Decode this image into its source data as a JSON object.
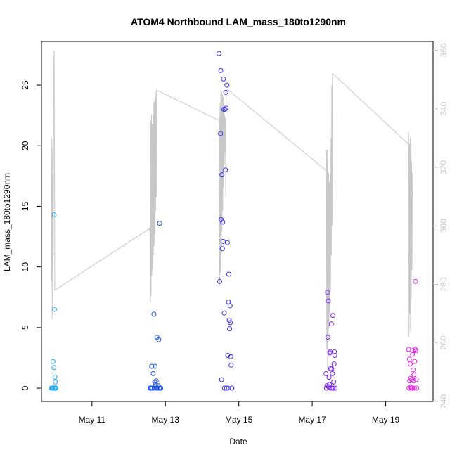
{
  "chart_data": {
    "type": "scatter",
    "title": "ATOM4 Northbound LAM_mass_180to1290nm",
    "xlabel": "Date",
    "ylabel": "LAM_mass_180to1290nm",
    "x_ticks": [
      "May 11",
      "May 13",
      "May 15",
      "May 17",
      "May 19"
    ],
    "xlim": [
      "2016-05-09T15:00",
      "2016-05-20T07:00"
    ],
    "ylim": [
      -1.1,
      28.6
    ],
    "y_ticks": [
      0,
      5,
      10,
      15,
      20,
      25
    ],
    "y2lim": [
      240,
      363
    ],
    "y2_ticks": [
      240,
      260,
      280,
      300,
      320,
      340,
      360
    ],
    "grid": false,
    "legend": "none",
    "colors": {
      "series_line": "#c8c8c8",
      "points": [
        "#1aa8f0",
        "#1f4fe8",
        "#3a2ee6",
        "#7a22e8",
        "#e21ee0"
      ]
    },
    "series": [
      {
        "axis": "left",
        "type": "scatter",
        "groups": [
          {
            "color": "#1aa8f0",
            "points": [
              [
                "2016-05-09T21:30",
                0
              ],
              [
                "2016-05-09T22:00",
                0
              ],
              [
                "2016-05-09T22:15",
                0
              ],
              [
                "2016-05-09T22:30",
                2.2
              ],
              [
                "2016-05-09T23:00",
                0
              ],
              [
                "2016-05-09T23:10",
                1.7
              ],
              [
                "2016-05-09T23:20",
                14.3
              ],
              [
                "2016-05-09T23:30",
                6.5
              ],
              [
                "2016-05-09T23:40",
                0
              ],
              [
                "2016-05-09T23:50",
                0.9
              ],
              [
                "2016-05-10T00:00",
                0.5
              ],
              [
                "2016-05-10T00:05",
                0
              ],
              [
                "2016-05-10T00:10",
                0
              ],
              [
                "2016-05-10T00:20",
                0
              ]
            ]
          },
          {
            "color": "#1f4fe8",
            "points": [
              [
                "2016-05-12T14:00",
                0
              ],
              [
                "2016-05-12T14:20",
                0
              ],
              [
                "2016-05-12T14:40",
                0
              ],
              [
                "2016-05-12T15:00",
                1.8
              ],
              [
                "2016-05-12T15:15",
                0
              ],
              [
                "2016-05-12T15:30",
                0
              ],
              [
                "2016-05-12T16:00",
                1.2
              ],
              [
                "2016-05-12T16:30",
                6.1
              ],
              [
                "2016-05-12T16:45",
                0
              ],
              [
                "2016-05-12T17:00",
                0.5
              ],
              [
                "2016-05-12T17:15",
                1.8
              ],
              [
                "2016-05-12T17:30",
                0.3
              ],
              [
                "2016-05-12T18:00",
                0.6
              ],
              [
                "2016-05-12T18:15",
                0
              ],
              [
                "2016-05-12T18:30",
                4.2
              ],
              [
                "2016-05-12T19:00",
                0
              ],
              [
                "2016-05-12T19:20",
                0.2
              ],
              [
                "2016-05-12T19:40",
                4.0
              ],
              [
                "2016-05-12T20:00",
                0
              ],
              [
                "2016-05-12T20:15",
                13.6
              ],
              [
                "2016-05-12T20:30",
                0
              ],
              [
                "2016-05-12T21:00",
                0
              ]
            ]
          },
          {
            "color": "#3a2ee6",
            "points": [
              [
                "2016-05-14T11:00",
                27.6
              ],
              [
                "2016-05-14T11:30",
                8.8
              ],
              [
                "2016-05-14T12:00",
                21.0
              ],
              [
                "2016-05-14T12:15",
                26.2
              ],
              [
                "2016-05-14T12:30",
                13.9
              ],
              [
                "2016-05-14T12:45",
                0.7
              ],
              [
                "2016-05-14T13:00",
                17.6
              ],
              [
                "2016-05-14T13:15",
                11.5
              ],
              [
                "2016-05-14T13:30",
                13.7
              ],
              [
                "2016-05-14T13:45",
                12.1
              ],
              [
                "2016-05-14T14:00",
                25.5
              ],
              [
                "2016-05-14T14:15",
                23.0
              ],
              [
                "2016-05-14T14:30",
                6.2
              ],
              [
                "2016-05-14T14:40",
                0
              ],
              [
                "2016-05-14T15:00",
                23.0
              ],
              [
                "2016-05-14T15:15",
                18.0
              ],
              [
                "2016-05-14T15:30",
                24.4
              ],
              [
                "2016-05-14T15:45",
                23.1
              ],
              [
                "2016-05-14T16:00",
                0
              ],
              [
                "2016-05-14T16:15",
                25.0
              ],
              [
                "2016-05-14T16:30",
                12.0
              ],
              [
                "2016-05-14T16:45",
                2.7
              ],
              [
                "2016-05-14T17:00",
                0
              ],
              [
                "2016-05-14T17:15",
                7.1
              ],
              [
                "2016-05-14T17:30",
                9.4
              ],
              [
                "2016-05-14T17:45",
                5.6
              ],
              [
                "2016-05-14T18:00",
                4.9
              ],
              [
                "2016-05-14T18:15",
                6.8
              ],
              [
                "2016-05-14T18:30",
                5.4
              ],
              [
                "2016-05-14T18:45",
                2.6
              ],
              [
                "2016-05-14T19:00",
                1.9
              ],
              [
                "2016-05-14T19:30",
                0
              ]
            ]
          },
          {
            "color": "#7a22e8",
            "points": [
              [
                "2016-05-17T09:00",
                1.2
              ],
              [
                "2016-05-17T09:20",
                0
              ],
              [
                "2016-05-17T09:40",
                0.2
              ],
              [
                "2016-05-17T10:00",
                7.9
              ],
              [
                "2016-05-17T10:15",
                4.2
              ],
              [
                "2016-05-17T10:30",
                7.2
              ],
              [
                "2016-05-17T10:45",
                0.1
              ],
              [
                "2016-05-17T11:00",
                0.9
              ],
              [
                "2016-05-17T11:15",
                0.3
              ],
              [
                "2016-05-17T11:30",
                2.9
              ],
              [
                "2016-05-17T11:45",
                3.0
              ],
              [
                "2016-05-17T12:00",
                1.6
              ],
              [
                "2016-05-17T12:15",
                0
              ],
              [
                "2016-05-17T12:30",
                5.3
              ],
              [
                "2016-05-17T12:45",
                1.6
              ],
              [
                "2016-05-17T13:00",
                0
              ],
              [
                "2016-05-17T13:15",
                1.2
              ],
              [
                "2016-05-17T13:30",
                6.0
              ],
              [
                "2016-05-17T13:45",
                0
              ],
              [
                "2016-05-17T14:00",
                0.5
              ],
              [
                "2016-05-17T14:15",
                2.0
              ],
              [
                "2016-05-17T14:30",
                3.0
              ],
              [
                "2016-05-17T14:45",
                2.7
              ],
              [
                "2016-05-17T15:00",
                0
              ]
            ]
          },
          {
            "color": "#e21ee0",
            "points": [
              [
                "2016-05-19T15:00",
                3.2
              ],
              [
                "2016-05-19T15:15",
                0
              ],
              [
                "2016-05-19T15:30",
                2.4
              ],
              [
                "2016-05-19T15:45",
                0.6
              ],
              [
                "2016-05-19T16:00",
                2.0
              ],
              [
                "2016-05-19T16:15",
                0.8
              ],
              [
                "2016-05-19T16:30",
                0.1
              ],
              [
                "2016-05-19T16:45",
                0
              ],
              [
                "2016-05-19T17:00",
                0.7
              ],
              [
                "2016-05-19T17:15",
                0
              ],
              [
                "2016-05-19T17:30",
                2.8
              ],
              [
                "2016-05-19T17:45",
                3.1
              ],
              [
                "2016-05-19T18:00",
                1.5
              ],
              [
                "2016-05-19T18:15",
                0.6
              ],
              [
                "2016-05-19T18:30",
                1.1
              ],
              [
                "2016-05-19T18:45",
                0
              ],
              [
                "2016-05-19T19:00",
                2.2
              ],
              [
                "2016-05-19T19:15",
                3.2
              ],
              [
                "2016-05-19T19:30",
                8.8
              ],
              [
                "2016-05-19T19:45",
                3.1
              ],
              [
                "2016-05-19T20:00",
                0.7
              ],
              [
                "2016-05-19T20:15",
                0
              ]
            ]
          }
        ]
      },
      {
        "axis": "right",
        "type": "line",
        "points": [
          [
            "2016-05-09T21:30",
            281
          ],
          [
            "2016-05-09T21:45",
            330
          ],
          [
            "2016-05-09T22:00",
            268
          ],
          [
            "2016-05-09T22:20",
            327
          ],
          [
            "2016-05-09T22:40",
            290
          ],
          [
            "2016-05-09T23:00",
            355
          ],
          [
            "2016-05-09T23:20",
            360
          ],
          [
            "2016-05-09T23:40",
            278
          ],
          [
            "2016-05-12T13:30",
            299
          ],
          [
            "2016-05-12T13:45",
            298
          ],
          [
            "2016-05-12T14:00",
            300
          ],
          [
            "2016-05-12T14:10",
            274
          ],
          [
            "2016-05-12T14:25",
            336
          ],
          [
            "2016-05-12T14:40",
            276
          ],
          [
            "2016-05-12T14:55",
            338
          ],
          [
            "2016-05-12T15:10",
            283
          ],
          [
            "2016-05-12T15:25",
            335
          ],
          [
            "2016-05-12T15:40",
            285
          ],
          [
            "2016-05-12T15:55",
            338
          ],
          [
            "2016-05-12T16:10",
            290
          ],
          [
            "2016-05-12T16:25",
            342
          ],
          [
            "2016-05-12T16:40",
            293
          ],
          [
            "2016-05-12T16:55",
            343
          ],
          [
            "2016-05-12T17:10",
            297
          ],
          [
            "2016-05-12T17:25",
            344
          ],
          [
            "2016-05-12T17:40",
            305
          ],
          [
            "2016-05-12T17:55",
            346
          ],
          [
            "2016-05-12T18:10",
            310
          ],
          [
            "2016-05-12T18:25",
            347
          ],
          [
            "2016-05-12T18:40",
            346
          ],
          [
            "2016-05-12T20:00",
            346
          ],
          [
            "2016-05-14T11:00",
            336
          ],
          [
            "2016-05-14T11:15",
            337
          ],
          [
            "2016-05-14T11:30",
            280
          ],
          [
            "2016-05-14T11:45",
            342
          ],
          [
            "2016-05-14T12:00",
            284
          ],
          [
            "2016-05-14T12:15",
            345
          ],
          [
            "2016-05-14T12:30",
            290
          ],
          [
            "2016-05-14T12:45",
            346
          ],
          [
            "2016-05-14T13:00",
            298
          ],
          [
            "2016-05-14T13:15",
            345
          ],
          [
            "2016-05-14T13:30",
            305
          ],
          [
            "2016-05-14T13:45",
            344
          ],
          [
            "2016-05-14T14:00",
            313
          ],
          [
            "2016-05-14T14:15",
            342
          ],
          [
            "2016-05-14T14:30",
            321
          ],
          [
            "2016-05-14T14:45",
            338
          ],
          [
            "2016-05-14T15:00",
            325
          ],
          [
            "2016-05-14T15:15",
            337
          ],
          [
            "2016-05-14T15:30",
            310
          ],
          [
            "2016-05-14T15:45",
            347
          ],
          [
            "2016-05-17T09:00",
            319
          ],
          [
            "2016-05-17T09:15",
            326
          ],
          [
            "2016-05-17T09:30",
            258
          ],
          [
            "2016-05-17T09:45",
            326
          ],
          [
            "2016-05-17T10:00",
            251
          ],
          [
            "2016-05-17T10:15",
            323
          ],
          [
            "2016-05-17T10:30",
            260
          ],
          [
            "2016-05-17T10:45",
            318
          ],
          [
            "2016-05-17T11:00",
            265
          ],
          [
            "2016-05-17T11:15",
            315
          ],
          [
            "2016-05-17T11:30",
            270
          ],
          [
            "2016-05-17T11:45",
            318
          ],
          [
            "2016-05-17T12:00",
            278
          ],
          [
            "2016-05-17T12:15",
            330
          ],
          [
            "2016-05-17T12:30",
            290
          ],
          [
            "2016-05-17T12:45",
            348
          ],
          [
            "2016-05-17T13:00",
            300
          ],
          [
            "2016-05-17T13:15",
            352
          ],
          [
            "2016-05-17T13:30",
            352
          ],
          [
            "2016-05-19T14:45",
            328
          ],
          [
            "2016-05-19T15:00",
            332
          ],
          [
            "2016-05-19T15:15",
            262
          ],
          [
            "2016-05-19T15:30",
            328
          ],
          [
            "2016-05-19T15:45",
            270
          ],
          [
            "2016-05-19T16:00",
            330
          ],
          [
            "2016-05-19T16:15",
            264
          ],
          [
            "2016-05-19T16:30",
            328
          ],
          [
            "2016-05-19T16:45",
            275
          ],
          [
            "2016-05-19T17:00",
            322
          ],
          [
            "2016-05-19T17:15",
            285
          ],
          [
            "2016-05-19T17:30",
            318
          ]
        ]
      }
    ]
  }
}
